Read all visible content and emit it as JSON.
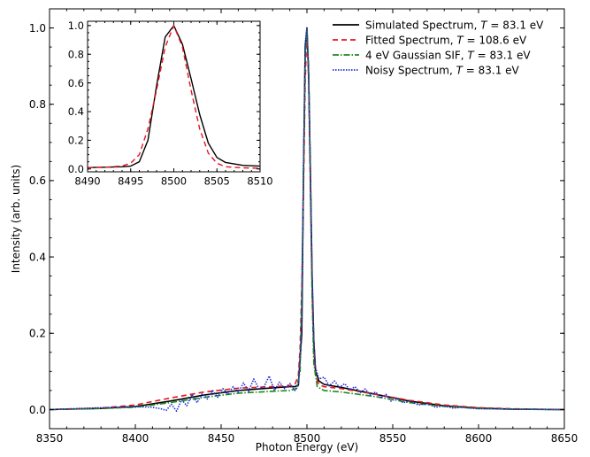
{
  "chart_data": [
    {
      "type": "line",
      "title": "",
      "xlabel": "Photon Energy (eV)",
      "ylabel": "Intensity (arb. units)",
      "xlim": [
        8350,
        8650
      ],
      "ylim": [
        -0.05,
        1.05
      ],
      "xticks": [
        8350,
        8400,
        8450,
        8500,
        8550,
        8600,
        8650
      ],
      "yticks": [
        0.0,
        0.2,
        0.4,
        0.6,
        0.8,
        1.0
      ],
      "xtick_labels": [
        "8350",
        "8400",
        "8450",
        "8500",
        "8550",
        "8600",
        "8650"
      ],
      "ytick_labels": [
        "0.0",
        "0.2",
        "0.4",
        "0.6",
        "0.8",
        "1.0"
      ],
      "grid": false,
      "legend_position": "top-right",
      "series": [
        {
          "name": "Simulated Spectrum, T = 83.1 eV",
          "legend_prefix": "Simulated Spectrum, ",
          "legend_var": "T",
          "legend_suffix": " = 83.1 eV",
          "color": "#000000",
          "dash": "solid",
          "x": [
            8350,
            8380,
            8400,
            8420,
            8440,
            8460,
            8480,
            8490,
            8493,
            8495,
            8497,
            8498,
            8499,
            8500,
            8501,
            8502,
            8503,
            8504,
            8505,
            8507,
            8510,
            8520,
            8540,
            8560,
            8580,
            8600,
            8620,
            8650
          ],
          "y": [
            0.0,
            0.003,
            0.008,
            0.022,
            0.038,
            0.05,
            0.057,
            0.06,
            0.06,
            0.064,
            0.2,
            0.62,
            0.95,
            1.0,
            0.87,
            0.63,
            0.35,
            0.18,
            0.1,
            0.075,
            0.066,
            0.058,
            0.04,
            0.022,
            0.01,
            0.004,
            0.001,
            0.0
          ]
        },
        {
          "name": "Fitted Spectrum, T = 108.6 eV",
          "legend_prefix": "Fitted Spectrum, ",
          "legend_var": "T",
          "legend_suffix": " = 108.6 eV",
          "color": "#e8141e",
          "dash": "6,4",
          "x": [
            8350,
            8380,
            8400,
            8420,
            8440,
            8460,
            8480,
            8490,
            8493,
            8495,
            8496,
            8497,
            8498,
            8499,
            8500,
            8501,
            8502,
            8503,
            8504,
            8505,
            8507,
            8510,
            8520,
            8540,
            8560,
            8580,
            8600,
            8620,
            8650
          ],
          "y": [
            0.0,
            0.004,
            0.012,
            0.03,
            0.046,
            0.056,
            0.06,
            0.062,
            0.065,
            0.09,
            0.16,
            0.32,
            0.58,
            0.86,
            1.0,
            0.86,
            0.58,
            0.32,
            0.16,
            0.09,
            0.065,
            0.06,
            0.055,
            0.04,
            0.024,
            0.012,
            0.005,
            0.002,
            0.0
          ]
        },
        {
          "name": "4 eV Gaussian SIF, T = 83.1 eV",
          "legend_prefix": "4 eV Gaussian SIF, ",
          "legend_var": "T",
          "legend_suffix": " = 83.1 eV",
          "color": "#1a8a1a",
          "dash": "7,2,1.5,2",
          "x": [
            8350,
            8380,
            8400,
            8420,
            8440,
            8460,
            8480,
            8490,
            8494,
            8496,
            8497,
            8498,
            8499,
            8500,
            8501,
            8502,
            8503,
            8504,
            8506,
            8510,
            8520,
            8540,
            8560,
            8580,
            8600,
            8620,
            8650
          ],
          "y": [
            0.0,
            0.003,
            0.006,
            0.018,
            0.032,
            0.043,
            0.048,
            0.05,
            0.055,
            0.1,
            0.3,
            0.62,
            0.92,
            1.0,
            0.9,
            0.6,
            0.3,
            0.12,
            0.06,
            0.05,
            0.046,
            0.034,
            0.018,
            0.008,
            0.003,
            0.001,
            0.0
          ]
        },
        {
          "name": "Noisy Spectrum, T = 83.1 eV",
          "legend_prefix": "Noisy Spectrum, ",
          "legend_var": "T",
          "legend_suffix": " = 83.1 eV",
          "color": "#1f2fd6",
          "dash": "1.5,1.5",
          "x": [
            8350,
            8400,
            8410,
            8415,
            8418,
            8421,
            8424,
            8427,
            8430,
            8433,
            8436,
            8439,
            8442,
            8445,
            8448,
            8451,
            8454,
            8457,
            8460,
            8463,
            8466,
            8469,
            8472,
            8475,
            8478,
            8481,
            8484,
            8487,
            8490,
            8493,
            8495,
            8497,
            8498,
            8499,
            8500,
            8501,
            8502,
            8503,
            8504,
            8505,
            8507,
            8510,
            8513,
            8516,
            8519,
            8522,
            8525,
            8528,
            8531,
            8534,
            8537,
            8540,
            8543,
            8546,
            8549,
            8552,
            8556,
            8560,
            8565,
            8570,
            8575,
            8580,
            8585,
            8590,
            8600,
            8650
          ],
          "y": [
            0.0,
            0.008,
            0.006,
            0.002,
            -0.002,
            0.014,
            -0.004,
            0.026,
            0.01,
            0.04,
            0.018,
            0.042,
            0.028,
            0.05,
            0.032,
            0.055,
            0.04,
            0.06,
            0.045,
            0.07,
            0.048,
            0.08,
            0.055,
            0.06,
            0.088,
            0.05,
            0.072,
            0.055,
            0.068,
            0.05,
            0.064,
            0.22,
            0.64,
            0.96,
            1.0,
            0.88,
            0.62,
            0.36,
            0.18,
            0.11,
            0.08,
            0.085,
            0.062,
            0.075,
            0.058,
            0.068,
            0.052,
            0.06,
            0.044,
            0.054,
            0.038,
            0.046,
            0.03,
            0.04,
            0.022,
            0.03,
            0.018,
            0.022,
            0.012,
            0.016,
            0.006,
            0.01,
            0.004,
            0.006,
            0.002,
            0.0
          ]
        }
      ]
    },
    {
      "type": "line",
      "title": "",
      "xlabel": "",
      "ylabel": "",
      "xlim": [
        8490,
        8510
      ],
      "ylim": [
        -0.02,
        1.03
      ],
      "xticks": [
        8490,
        8495,
        8500,
        8505,
        8510
      ],
      "yticks": [
        0.0,
        0.2,
        0.4,
        0.6,
        0.8,
        1.0
      ],
      "xtick_labels": [
        "8490",
        "8495",
        "8500",
        "8505",
        "8510"
      ],
      "ytick_labels": [
        "0.0",
        "0.2",
        "0.4",
        "0.6",
        "0.8",
        "1.0"
      ],
      "grid": false,
      "legend_position": "none",
      "series": [
        {
          "color": "#000000",
          "dash": "solid",
          "x": [
            8490,
            8492,
            8494,
            8495,
            8496,
            8497,
            8498,
            8499,
            8500,
            8501,
            8502,
            8503,
            8504,
            8505,
            8506,
            8508,
            8510
          ],
          "y": [
            0.01,
            0.012,
            0.015,
            0.02,
            0.05,
            0.2,
            0.58,
            0.92,
            1.0,
            0.87,
            0.63,
            0.38,
            0.18,
            0.08,
            0.045,
            0.025,
            0.02
          ]
        },
        {
          "color": "#e8141e",
          "dash": "6,4",
          "x": [
            8490,
            8492,
            8494,
            8495,
            8496,
            8497,
            8498,
            8499,
            8500,
            8501,
            8502,
            8503,
            8504,
            8505,
            8506,
            8508,
            8510
          ],
          "y": [
            0.01,
            0.012,
            0.02,
            0.04,
            0.1,
            0.28,
            0.55,
            0.85,
            1.0,
            0.85,
            0.55,
            0.28,
            0.11,
            0.04,
            0.015,
            0.008,
            0.005
          ]
        }
      ]
    }
  ]
}
